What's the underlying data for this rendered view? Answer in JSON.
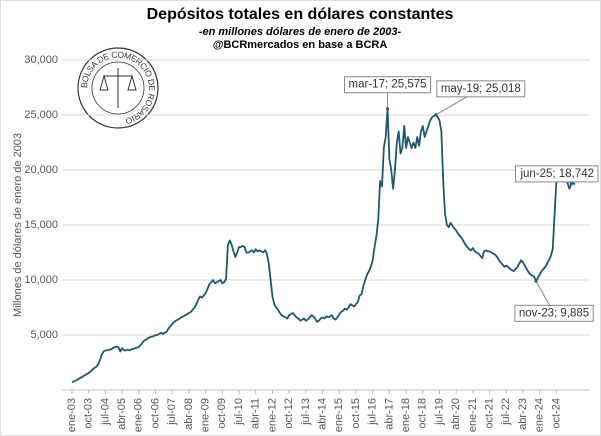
{
  "chart_data": {
    "type": "line",
    "title": "Depósitos totales en dólares constantes",
    "subtitle": "-en millones dólares de enero de 2003-",
    "source": "@BCRmercados en base a BCRA",
    "logo_text": "BOLSA DE COMERCIO DE ROSARIO",
    "y_label": "Millones de dólares de enero de 2003",
    "color": "#1f5670",
    "grid": true,
    "ylim": [
      0,
      30000
    ],
    "yticks": [
      {
        "value": 5000,
        "label": "5,000"
      },
      {
        "value": 10000,
        "label": "10,000"
      },
      {
        "value": 15000,
        "label": "15,000"
      },
      {
        "value": 20000,
        "label": "20,000"
      },
      {
        "value": 25000,
        "label": "25,000"
      },
      {
        "value": 30000,
        "label": "30,000"
      }
    ],
    "categories": [
      "ene-03",
      null,
      null,
      null,
      null,
      null,
      null,
      null,
      null,
      "oct-03",
      null,
      null,
      null,
      null,
      null,
      null,
      null,
      null,
      "jul-04",
      null,
      null,
      null,
      null,
      null,
      null,
      null,
      null,
      "abr-05",
      null,
      null,
      null,
      null,
      null,
      null,
      null,
      null,
      "ene-06",
      null,
      null,
      null,
      null,
      null,
      null,
      null,
      null,
      "oct-06",
      null,
      null,
      null,
      null,
      null,
      null,
      null,
      null,
      "jul-07",
      null,
      null,
      null,
      null,
      null,
      null,
      null,
      null,
      "abr-08",
      null,
      null,
      null,
      null,
      null,
      null,
      null,
      null,
      "ene-09",
      null,
      null,
      null,
      null,
      null,
      null,
      null,
      null,
      "oct-09",
      null,
      null,
      null,
      null,
      null,
      null,
      null,
      null,
      "jul-10",
      null,
      null,
      null,
      null,
      null,
      null,
      null,
      null,
      "abr-11",
      null,
      null,
      null,
      null,
      null,
      null,
      null,
      null,
      "ene-12",
      null,
      null,
      null,
      null,
      null,
      null,
      null,
      null,
      "oct-12",
      null,
      null,
      null,
      null,
      null,
      null,
      null,
      null,
      "jul-13",
      null,
      null,
      null,
      null,
      null,
      null,
      null,
      null,
      "abr-14",
      null,
      null,
      null,
      null,
      null,
      null,
      null,
      null,
      "ene-15",
      null,
      null,
      null,
      null,
      null,
      null,
      null,
      null,
      "oct-15",
      null,
      null,
      null,
      null,
      null,
      null,
      null,
      null,
      "jul-16",
      null,
      null,
      null,
      null,
      null,
      null,
      null,
      null,
      "abr-17",
      null,
      null,
      null,
      null,
      null,
      null,
      null,
      null,
      "ene-18",
      null,
      null,
      null,
      null,
      null,
      null,
      null,
      null,
      "oct-18",
      null,
      null,
      null,
      null,
      null,
      null,
      null,
      null,
      "jul-19",
      null,
      null,
      null,
      null,
      null,
      null,
      null,
      null,
      "abr-20",
      null,
      null,
      null,
      null,
      null,
      null,
      null,
      null,
      "ene-21",
      null,
      null,
      null,
      null,
      null,
      null,
      null,
      null,
      "oct-21",
      null,
      null,
      null,
      null,
      null,
      null,
      null,
      null,
      "jul-22",
      null,
      null,
      null,
      null,
      null,
      null,
      null,
      null,
      "abr-23",
      null,
      null,
      null,
      null,
      null,
      null,
      null,
      null,
      "ene-24",
      null,
      null,
      null,
      null,
      null,
      null,
      null,
      null,
      "oct-24",
      null,
      null,
      null,
      null,
      null,
      null,
      null,
      null,
      null,
      null
    ],
    "values": [
      700,
      780,
      860,
      950,
      1050,
      1150,
      1250,
      1350,
      1450,
      1550,
      1700,
      1850,
      2000,
      2100,
      2300,
      2700,
      3200,
      3500,
      3600,
      3600,
      3650,
      3700,
      3800,
      3900,
      3950,
      3900,
      3500,
      3800,
      3600,
      3600,
      3650,
      3600,
      3700,
      3750,
      3800,
      3850,
      3900,
      4100,
      4300,
      4500,
      4600,
      4700,
      4800,
      4850,
      4900,
      5000,
      5000,
      5100,
      5200,
      5100,
      5200,
      5300,
      5600,
      5800,
      6000,
      6200,
      6300,
      6400,
      6500,
      6600,
      6700,
      6800,
      6900,
      7000,
      7100,
      7300,
      7500,
      7800,
      8200,
      8500,
      8400,
      8600,
      8800,
      9200,
      9600,
      9800,
      10000,
      9700,
      9800,
      9900,
      10000,
      9700,
      9800,
      10100,
      13200,
      13600,
      13200,
      12600,
      12100,
      12500,
      13000,
      13000,
      13100,
      13000,
      12500,
      12500,
      12600,
      12700,
      12500,
      12800,
      12600,
      12700,
      12600,
      12500,
      12700,
      12400,
      11500,
      10000,
      8500,
      7800,
      7500,
      7300,
      7000,
      6800,
      6700,
      6600,
      6500,
      6800,
      6900,
      7000,
      6800,
      6600,
      6500,
      6300,
      6400,
      6500,
      6300,
      6400,
      6600,
      6800,
      6700,
      6500,
      6200,
      6300,
      6500,
      6600,
      6500,
      6700,
      6600,
      6700,
      6800,
      6500,
      6400,
      6600,
      6900,
      7100,
      7200,
      7400,
      7300,
      7500,
      7800,
      7700,
      7600,
      7800,
      8000,
      8600,
      8700,
      9500,
      10000,
      10500,
      10800,
      11200,
      11800,
      13000,
      14000,
      15500,
      19000,
      18500,
      22000,
      23000,
      25575,
      21000,
      20000,
      18300,
      20000,
      22500,
      23500,
      21500,
      22000,
      24000,
      22000,
      23000,
      22500,
      22000,
      22500,
      22000,
      23000,
      22200,
      23500,
      24000,
      23000,
      23500,
      24000,
      24500,
      24800,
      24900,
      25018,
      24800,
      24500,
      23500,
      19000,
      16000,
      15000,
      14800,
      15200,
      14900,
      14700,
      14500,
      14200,
      14000,
      13800,
      13500,
      13200,
      13000,
      12800,
      12700,
      12900,
      12600,
      12500,
      12400,
      12200,
      12000,
      12600,
      12700,
      12600,
      12600,
      12500,
      12400,
      12300,
      12100,
      11800,
      11600,
      11400,
      11200,
      11300,
      11200,
      11000,
      10900,
      10800,
      11000,
      11200,
      11500,
      11800,
      11600,
      11300,
      11000,
      10700,
      10500,
      10400,
      10300,
      9885,
      10200,
      10500,
      10800,
      11000,
      11200,
      11500,
      11800,
      12200,
      12800,
      16000,
      19000,
      20000,
      19500,
      19500,
      19600,
      19300,
      18800,
      18300,
      18742,
      18800,
      18700
    ],
    "annotations": [
      {
        "label": "mar-17;  25,575",
        "value": 25575
      },
      {
        "label": "may-19;  25,018",
        "value": 25018
      },
      {
        "label": "jun-25;  18,742",
        "value": 18742
      },
      {
        "label": "nov-23;  9,885",
        "value": 9885
      }
    ]
  }
}
